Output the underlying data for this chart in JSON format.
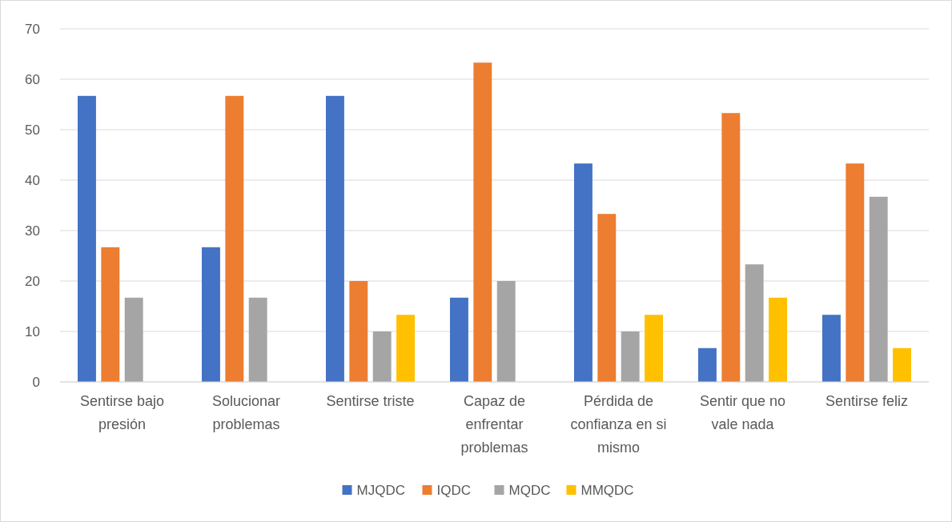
{
  "chart_data": {
    "type": "bar",
    "categories": [
      "Sentirse bajo presión",
      "Solucionar problemas",
      "Sentirse triste",
      "Capaz de enfrentar problemas",
      "Pérdida de confianza en si mismo",
      "Sentir que no vale nada",
      "Sentirse feliz"
    ],
    "series": [
      {
        "name": "MJQDC",
        "color": "#4472c4",
        "values": [
          56.7,
          26.7,
          56.7,
          16.7,
          43.3,
          6.7,
          13.3
        ]
      },
      {
        "name": "IQDC",
        "color": "#ed7d31",
        "values": [
          26.7,
          56.7,
          20,
          63.3,
          33.3,
          53.3,
          43.3
        ]
      },
      {
        "name": "MQDC",
        "color": "#a5a5a5",
        "values": [
          16.7,
          16.7,
          10,
          20,
          10,
          23.3,
          36.7
        ]
      },
      {
        "name": "MMQDC",
        "color": "#ffc000",
        "values": [
          0,
          0,
          13.3,
          0,
          13.3,
          16.7,
          6.7
        ]
      }
    ],
    "ylim": [
      0,
      70
    ],
    "yticks": [
      0,
      10,
      20,
      30,
      40,
      50,
      60,
      70
    ],
    "grid": "y",
    "legend": "bottom"
  }
}
